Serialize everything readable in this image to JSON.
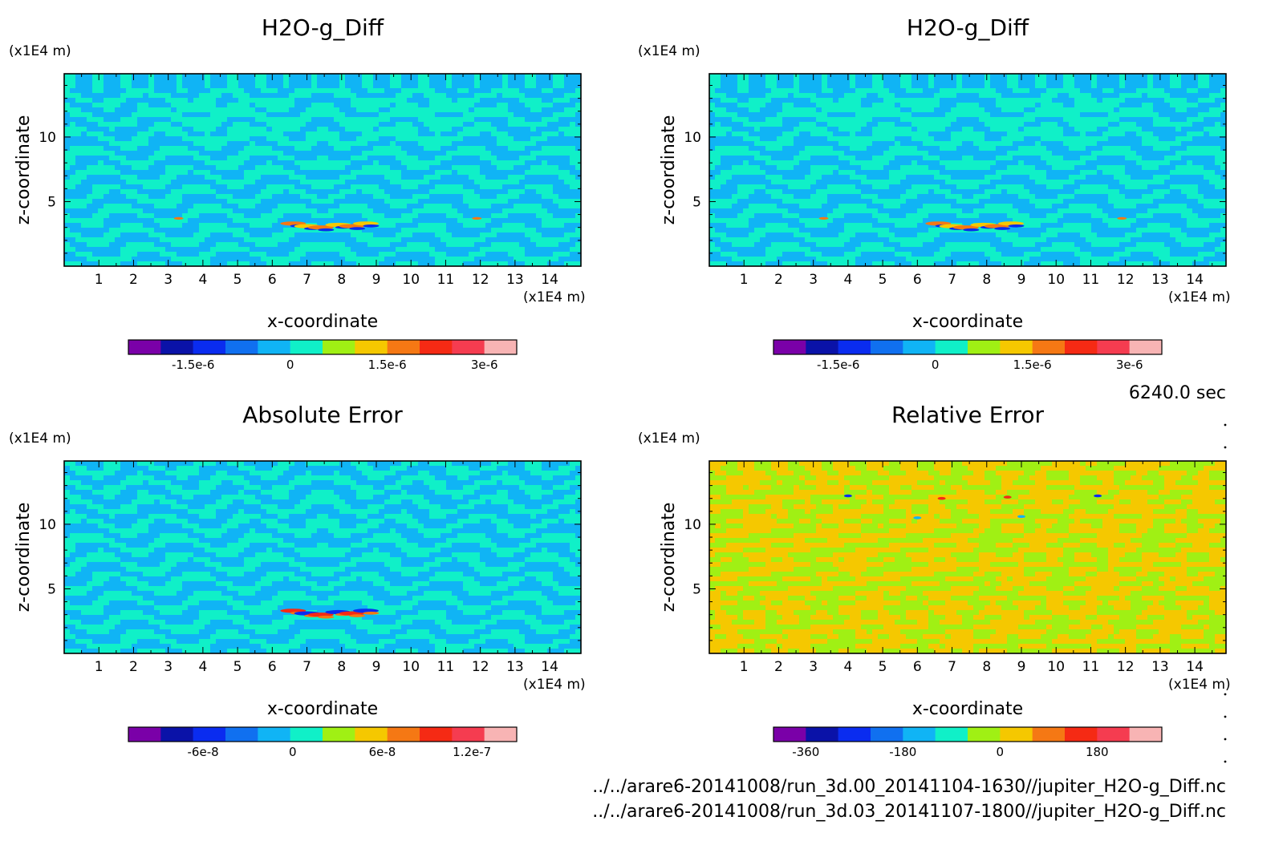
{
  "time_label": "6240.0 sec",
  "files": [
    "../../arare6-20141008/run_3d.00_20141104-1630//jupiter_H2O-g_Diff.nc",
    "../../arare6-20141008/run_3d.03_20141107-1800//jupiter_H2O-g_Diff.nc"
  ],
  "colors": {
    "scale": [
      "#7a00a8",
      "#0a12a8",
      "#0a2cf0",
      "#1070f0",
      "#10b4f5",
      "#10f0c8",
      "#a0f014",
      "#f5c800",
      "#f57814",
      "#f52a14",
      "#f53c50",
      "#f8b4b4"
    ]
  },
  "chart_data": [
    {
      "type": "heatmap",
      "title": "H2O-g_Diff",
      "xlabel": "x-coordinate",
      "ylabel": "z-coordinate",
      "xunit": "(x1E4 m)",
      "yunit": "(x1E4 m)",
      "xlim": [
        0,
        14.9
      ],
      "ylim": [
        0,
        14.9
      ],
      "xticks": [
        "1",
        "2",
        "3",
        "4",
        "5",
        "6",
        "7",
        "8",
        "9",
        "10",
        "11",
        "12",
        "13",
        "14"
      ],
      "yticks": [
        "5",
        "10"
      ],
      "colorbar_ticks": [
        "-1.5e-6",
        "0",
        "1.5e-6",
        "3e-6"
      ],
      "colorbar_range": [
        -2.5e-06,
        3.5e-06
      ],
      "background_classes": [
        4,
        5
      ],
      "feature": "warm",
      "pattern": "diff"
    },
    {
      "type": "heatmap",
      "title": "H2O-g_Diff",
      "xlabel": "x-coordinate",
      "ylabel": "z-coordinate",
      "xunit": "(x1E4 m)",
      "yunit": "(x1E4 m)",
      "xlim": [
        0,
        14.9
      ],
      "ylim": [
        0,
        14.9
      ],
      "xticks": [
        "1",
        "2",
        "3",
        "4",
        "5",
        "6",
        "7",
        "8",
        "9",
        "10",
        "11",
        "12",
        "13",
        "14"
      ],
      "yticks": [
        "5",
        "10"
      ],
      "colorbar_ticks": [
        "-1.5e-6",
        "0",
        "1.5e-6",
        "3e-6"
      ],
      "colorbar_range": [
        -2.5e-06,
        3.5e-06
      ],
      "background_classes": [
        4,
        5
      ],
      "feature": "warm",
      "pattern": "diff"
    },
    {
      "type": "heatmap",
      "title": "Absolute Error",
      "xlabel": "x-coordinate",
      "ylabel": "z-coordinate",
      "xunit": "(x1E4 m)",
      "yunit": "(x1E4 m)",
      "xlim": [
        0,
        14.9
      ],
      "ylim": [
        0,
        14.9
      ],
      "xticks": [
        "1",
        "2",
        "3",
        "4",
        "5",
        "6",
        "7",
        "8",
        "9",
        "10",
        "11",
        "12",
        "13",
        "14"
      ],
      "yticks": [
        "5",
        "10"
      ],
      "colorbar_ticks": [
        "-6e-8",
        "0",
        "6e-8",
        "1.2e-7"
      ],
      "colorbar_range": [
        -1.1e-07,
        1.5e-07
      ],
      "background_classes": [
        4,
        5
      ],
      "feature": "mixed",
      "pattern": "error"
    },
    {
      "type": "heatmap",
      "title": "Relative Error",
      "xlabel": "x-coordinate",
      "ylabel": "z-coordinate",
      "xunit": "(x1E4 m)",
      "yunit": "(x1E4 m)",
      "xlim": [
        0,
        14.9
      ],
      "ylim": [
        0,
        14.9
      ],
      "xticks": [
        "1",
        "2",
        "3",
        "4",
        "5",
        "6",
        "7",
        "8",
        "9",
        "10",
        "11",
        "12",
        "13",
        "14"
      ],
      "yticks": [
        "5",
        "10"
      ],
      "colorbar_ticks": [
        "-360",
        "-180",
        "0",
        "180"
      ],
      "colorbar_range": [
        -420,
        300
      ],
      "background_classes": [
        7,
        6
      ],
      "feature": "dots",
      "pattern": "relative"
    }
  ]
}
